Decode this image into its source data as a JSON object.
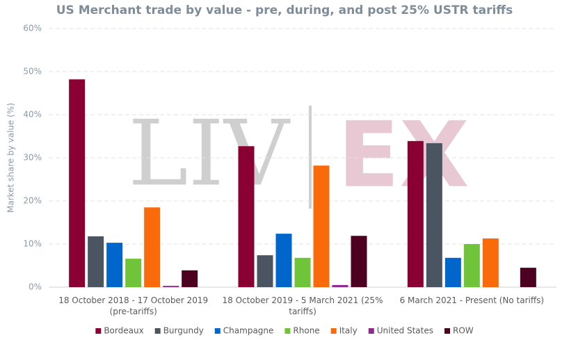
{
  "chart_data": {
    "type": "bar",
    "title": "US Merchant trade by value - pre, during, and post 25% USTR tariffs",
    "y_label": "Market share by value (%)",
    "watermark": [
      "LIV",
      "EX"
    ],
    "categories": [
      "18 October 2018 - 17 October 2019 (pre-tariffs)",
      "18 October 2019 - 5 March 2021 (25% tariffs)",
      "6 March 2021 - Present (No tariffs)"
    ],
    "series": [
      {
        "name": "Bordeaux",
        "color": "#8b0033",
        "values": [
          48.2,
          32.7,
          33.9
        ]
      },
      {
        "name": "Burgundy",
        "color": "#4a5561",
        "values": [
          11.8,
          7.4,
          33.4
        ]
      },
      {
        "name": "Champagne",
        "color": "#0066cc",
        "values": [
          10.3,
          12.4,
          6.8
        ]
      },
      {
        "name": "Rhone",
        "color": "#70c43a",
        "values": [
          6.6,
          6.8,
          10.0
        ]
      },
      {
        "name": "Italy",
        "color": "#f96a0a",
        "values": [
          18.5,
          28.2,
          11.3
        ]
      },
      {
        "name": "United States",
        "color": "#8e2a8e",
        "values": [
          0.3,
          0.5,
          0
        ]
      },
      {
        "name": "ROW",
        "color": "#4d0020",
        "values": [
          3.9,
          11.9,
          4.5
        ]
      }
    ],
    "ylim": [
      0,
      60
    ],
    "yticks": [
      {
        "value": 0,
        "label": "0%"
      },
      {
        "value": 10,
        "label": "10%"
      },
      {
        "value": 20,
        "label": "20%"
      },
      {
        "value": 30,
        "label": "30%"
      },
      {
        "value": 40,
        "label": "40%"
      },
      {
        "value": 50,
        "label": "50%"
      },
      {
        "value": 60,
        "label": "60%"
      }
    ],
    "grid": true
  }
}
